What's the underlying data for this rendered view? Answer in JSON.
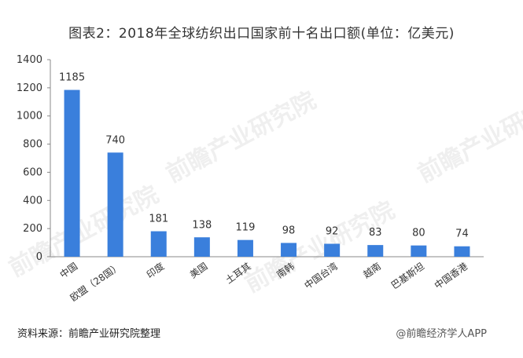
{
  "chart_data": {
    "type": "bar",
    "title": "图表2：2018年全球纺织出口国家前十名出口额(单位：亿美元)",
    "categories": [
      "中国",
      "欧盟（28国）",
      "印度",
      "美国",
      "土耳其",
      "南韩",
      "中国台湾",
      "越南",
      "巴基斯坦",
      "中国香港"
    ],
    "values": [
      1185,
      740,
      181,
      138,
      119,
      98,
      92,
      83,
      80,
      74
    ],
    "value_labels": [
      "1185",
      "740",
      "181",
      "138",
      "119",
      "98",
      "92",
      "83",
      "80",
      "74"
    ],
    "ylim": [
      0,
      1400
    ],
    "yticks": [
      0,
      200,
      400,
      600,
      800,
      1000,
      1200,
      1400
    ],
    "ytick_labels": [
      "0",
      "200",
      "400",
      "600",
      "800",
      "1000",
      "1200",
      "1400"
    ],
    "grid": false,
    "legend": "none",
    "bar_color": "#3a7fdc"
  },
  "footer": {
    "source": "资料来源：前瞻产业研究院整理",
    "brand": "@前瞻经济学人APP"
  },
  "watermark": {
    "text": "前瞻产业研究院"
  }
}
